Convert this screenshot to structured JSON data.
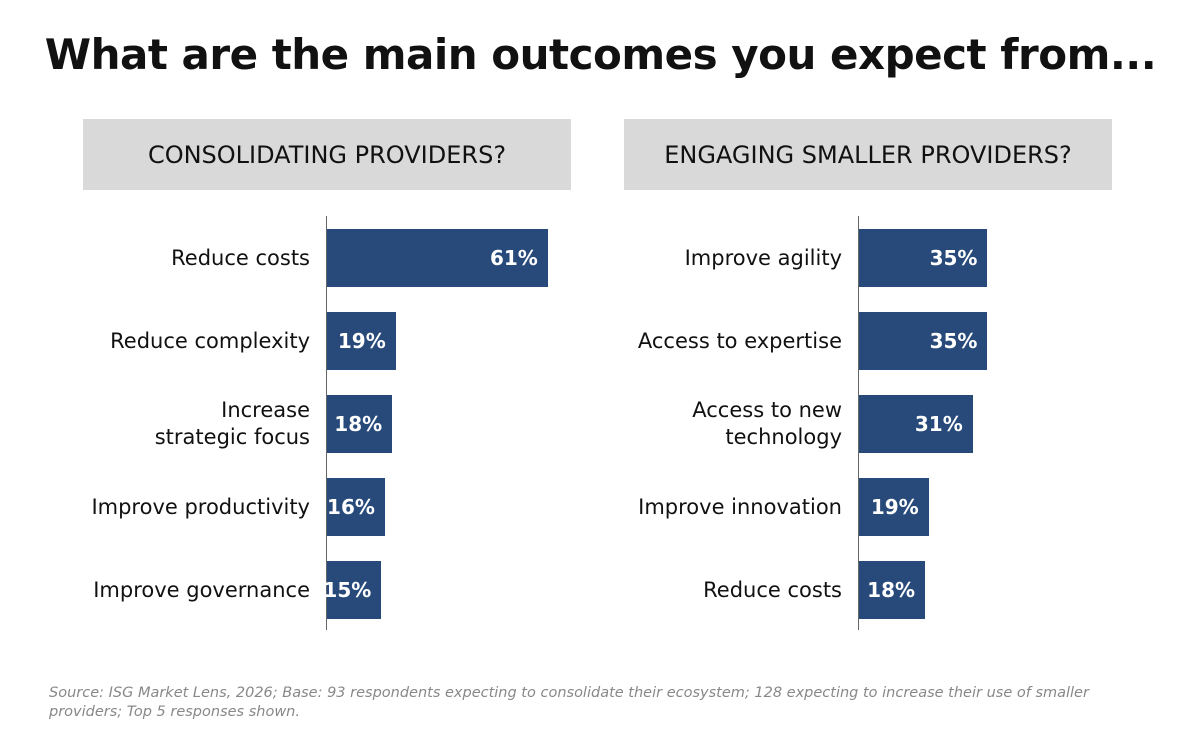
{
  "title": "What are the main outcomes you expect from...",
  "source": "Source: ISG Market Lens, 2026; Base: 93 respondents expecting to consolidate their ecosystem; 128 expecting to increase their use of smaller providers; Top 5 responses shown.",
  "colors": {
    "bar": "#284a7a",
    "header_bg": "#d9d9d9"
  },
  "chart_data": [
    {
      "type": "bar",
      "orientation": "horizontal",
      "title": "CONSOLIDATING PROVIDERS?",
      "categories": [
        "Reduce costs",
        "Reduce complexity",
        "Increase strategic focus",
        "Improve productivity",
        "Improve governance"
      ],
      "category_lines": [
        [
          "Reduce costs"
        ],
        [
          "Reduce complexity"
        ],
        [
          "Increase",
          "strategic focus"
        ],
        [
          "Improve productivity"
        ],
        [
          "Improve governance"
        ]
      ],
      "values": [
        61,
        19,
        18,
        16,
        15
      ],
      "data_labels": [
        "61%",
        "19%",
        "18%",
        "16%",
        "15%"
      ],
      "unit": "%",
      "grid": false
    },
    {
      "type": "bar",
      "orientation": "horizontal",
      "title": "ENGAGING SMALLER PROVIDERS?",
      "categories": [
        "Improve agility",
        "Access to expertise",
        "Access to new technology",
        "Improve innovation",
        "Reduce costs"
      ],
      "category_lines": [
        [
          "Improve agility"
        ],
        [
          "Access to expertise"
        ],
        [
          "Access to new",
          "technology"
        ],
        [
          "Improve innovation"
        ],
        [
          "Reduce costs"
        ]
      ],
      "values": [
        35,
        35,
        31,
        19,
        18
      ],
      "data_labels": [
        "35%",
        "35%",
        "31%",
        "19%",
        "18%"
      ],
      "unit": "%",
      "grid": false
    }
  ]
}
